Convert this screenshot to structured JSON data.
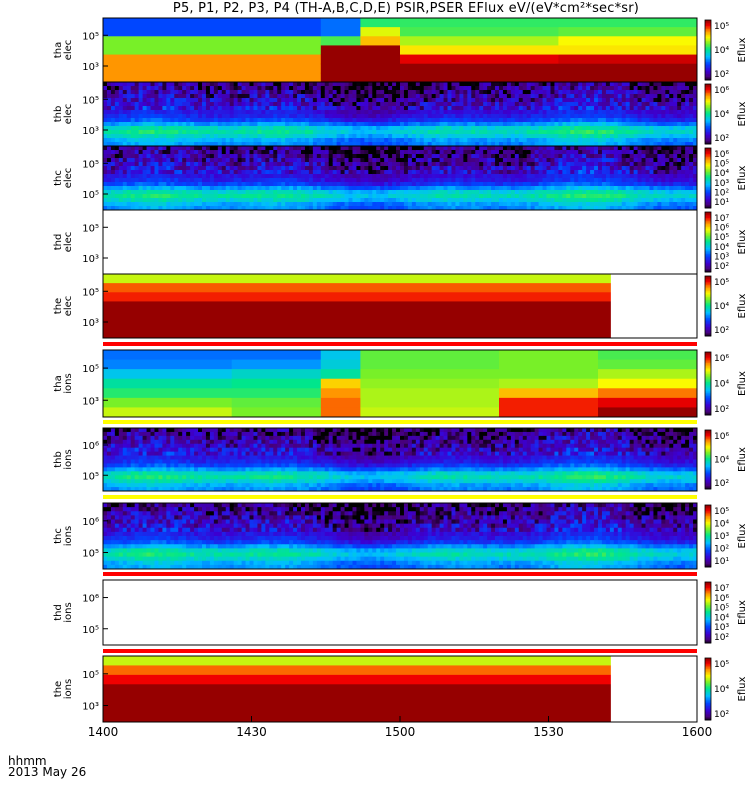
{
  "title": "P5, P1, P2, P3, P4 (TH-A,B,C,D,E) PSIR,PSER EFlux eV/(eV*cm²*sec*sr)",
  "footer": {
    "label": "hhmm",
    "date": "2013 May 26"
  },
  "chart_data": {
    "type": "heatmap",
    "x_ticks": [
      "1400",
      "1430",
      "1500",
      "1530",
      "1600"
    ],
    "panels": [
      {
        "ylabel": [
          "tha",
          "elec"
        ],
        "yticks": [
          "10⁵",
          "10³"
        ],
        "cbar_label": "Eflux",
        "cbar_ticks": [
          "10⁵",
          "10⁴",
          "10²"
        ],
        "kind": "block",
        "blocks": [
          [
            0,
            22,
            [
              0.28,
              0.28,
              0.62,
              0.62,
              0.82,
              0.82,
              0.82
            ]
          ],
          [
            22,
            26,
            [
              0.32,
              0.32,
              0.58,
              1.0,
              1.0,
              1.0,
              1.0
            ]
          ],
          [
            26,
            30,
            [
              0.55,
              0.7,
              0.78,
              1.0,
              1.0,
              1.0,
              1.0
            ]
          ],
          [
            30,
            46,
            [
              0.56,
              0.58,
              0.66,
              0.74,
              0.93,
              1.0,
              1.0
            ]
          ],
          [
            46,
            60,
            [
              0.56,
              0.6,
              0.72,
              0.74,
              0.95,
              1.0,
              1.0
            ]
          ]
        ]
      },
      {
        "ylabel": [
          "thb",
          "elec"
        ],
        "yticks": [
          "10⁵",
          "10³"
        ],
        "cbar_label": "Eflux",
        "cbar_ticks": [
          "10⁶",
          "10⁴",
          "10²"
        ],
        "kind": "noise"
      },
      {
        "ylabel": [
          "thc",
          "elec"
        ],
        "yticks": [
          "10⁵",
          "10⁵"
        ],
        "cbar_label": "Eflux",
        "cbar_ticks": [
          "10⁶",
          "10⁵",
          "10⁴",
          "10³",
          "10²",
          "10¹"
        ],
        "kind": "noise"
      },
      {
        "ylabel": [
          "thd",
          "elec"
        ],
        "yticks": [
          "10⁵",
          "10³"
        ],
        "cbar_label": "Eflux",
        "cbar_ticks": [
          "10⁷",
          "10⁶",
          "10⁵",
          "10⁴",
          "10³",
          "10²"
        ],
        "kind": "empty"
      },
      {
        "ylabel": [
          "the",
          "elec"
        ],
        "yticks": [
          "10⁵",
          "10³"
        ],
        "cbar_label": "Eflux",
        "cbar_ticks": [
          "10⁵",
          "10⁴",
          "10²"
        ],
        "kind": "block",
        "end": 51.3,
        "blocks": [
          [
            0,
            51.3,
            [
              0.68,
              0.86,
              0.9,
              1.0,
              1.0,
              1.0,
              1.0
            ]
          ]
        ]
      },
      {
        "ylabel": [
          "tha",
          "ions"
        ],
        "yticks": [
          "10⁵",
          "10³"
        ],
        "cbar_label": "Eflux",
        "cbar_ticks": [
          "10⁶",
          "10⁴",
          "10²"
        ],
        "kind": "block",
        "blocks": [
          [
            0,
            13,
            [
              0.32,
              0.34,
              0.42,
              0.5,
              0.55,
              0.62,
              0.68
            ]
          ],
          [
            13,
            22,
            [
              0.32,
              0.36,
              0.46,
              0.52,
              0.55,
              0.6,
              0.62
            ]
          ],
          [
            22,
            26,
            [
              0.42,
              0.44,
              0.5,
              0.76,
              0.82,
              0.85,
              0.85
            ]
          ],
          [
            26,
            40,
            [
              0.6,
              0.6,
              0.62,
              0.64,
              0.66,
              0.66,
              0.68
            ]
          ],
          [
            40,
            50,
            [
              0.62,
              0.62,
              0.62,
              0.66,
              0.78,
              0.9,
              0.9
            ]
          ],
          [
            50,
            60,
            [
              0.58,
              0.6,
              0.66,
              0.72,
              0.84,
              0.93,
              1.0
            ]
          ]
        ]
      },
      {
        "ylabel": [
          "thb",
          "ions"
        ],
        "yticks": [
          "10⁶",
          "10⁵"
        ],
        "cbar_label": "Eflux",
        "cbar_ticks": [
          "10⁶",
          "10⁴",
          "10²"
        ],
        "kind": "noise"
      },
      {
        "ylabel": [
          "thc",
          "ions"
        ],
        "yticks": [
          "10⁶",
          "10⁵"
        ],
        "cbar_label": "Eflux",
        "cbar_ticks": [
          "10⁵",
          "10⁴",
          "10³",
          "10²",
          "10¹"
        ],
        "kind": "noise"
      },
      {
        "ylabel": [
          "thd",
          "ions"
        ],
        "yticks": [
          "10⁶",
          "10⁵"
        ],
        "cbar_label": "Eflux",
        "cbar_ticks": [
          "10⁷",
          "10⁶",
          "10⁵",
          "10⁴",
          "10³",
          "10²"
        ],
        "kind": "empty"
      },
      {
        "ylabel": [
          "the",
          "ions"
        ],
        "yticks": [
          "10⁵",
          "10³"
        ],
        "cbar_label": "Eflux",
        "cbar_ticks": [
          "10⁵",
          "10⁴",
          "10²"
        ],
        "kind": "block",
        "end": 51.3,
        "blocks": [
          [
            0,
            51.3,
            [
              0.68,
              0.85,
              0.92,
              1.0,
              1.0,
              1.0,
              1.0
            ]
          ]
        ]
      }
    ]
  }
}
